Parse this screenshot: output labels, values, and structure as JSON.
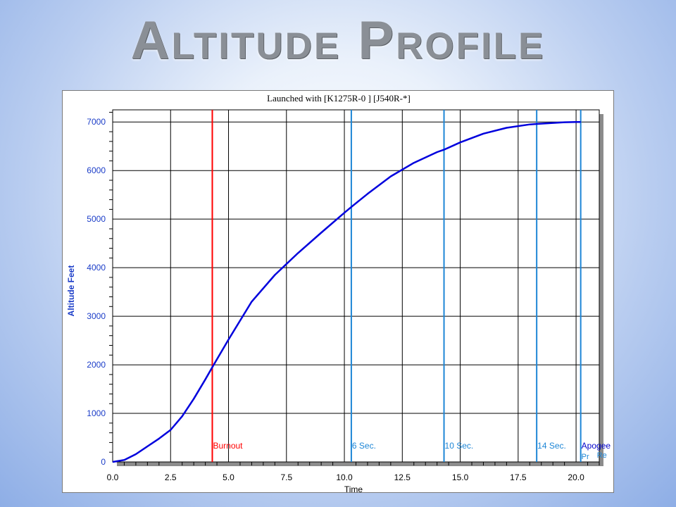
{
  "slide": {
    "title": "Altitude Profile"
  },
  "chart_data": {
    "type": "line",
    "title": "Launched with [K1275R-0   ] [J540R-*]",
    "xlabel": "Time",
    "ylabel": "Altitude Feet",
    "xlim": [
      0,
      21.0
    ],
    "ylim": [
      0,
      7250
    ],
    "grid": true,
    "x_ticks": [
      "0.0",
      "2.5",
      "5.0",
      "7.5",
      "10.0",
      "12.5",
      "15.0",
      "17.5",
      "20.0"
    ],
    "y_ticks": [
      "0",
      "1000",
      "2000",
      "3000",
      "4000",
      "5000",
      "6000",
      "7000"
    ],
    "series": [
      {
        "color": "#0000dd",
        "x": [
          0,
          0.5,
          1.0,
          1.5,
          2.0,
          2.5,
          3.0,
          3.5,
          4.0,
          4.3,
          5.0,
          6.0,
          7.0,
          8.0,
          9.0,
          10.0,
          10.3,
          11.0,
          12.0,
          13.0,
          14.0,
          14.3,
          15.0,
          16.0,
          17.0,
          18.0,
          18.3,
          19.0,
          19.5,
          20.0,
          20.2
        ],
        "y": [
          0,
          40,
          160,
          320,
          480,
          660,
          940,
          1300,
          1700,
          1950,
          2520,
          3300,
          3850,
          4300,
          4720,
          5130,
          5250,
          5520,
          5880,
          6160,
          6380,
          6430,
          6580,
          6760,
          6880,
          6950,
          6960,
          6980,
          6995,
          7000,
          7000
        ]
      }
    ],
    "markers": [
      {
        "label": "Burnout",
        "x": 4.3,
        "color": "#ff0000"
      },
      {
        "label": "6 Sec.",
        "x": 10.3,
        "color": "#1e86d6"
      },
      {
        "label": "10 Sec.",
        "x": 14.3,
        "color": "#1e86d6"
      },
      {
        "label": "14 Sec.",
        "x": 18.3,
        "color": "#1e86d6"
      },
      {
        "label": "Apogee",
        "x": 20.2,
        "color": "#1e86d6",
        "label_color": "#0000cc"
      }
    ],
    "edge_labels": [
      "Pr",
      "Re"
    ]
  }
}
